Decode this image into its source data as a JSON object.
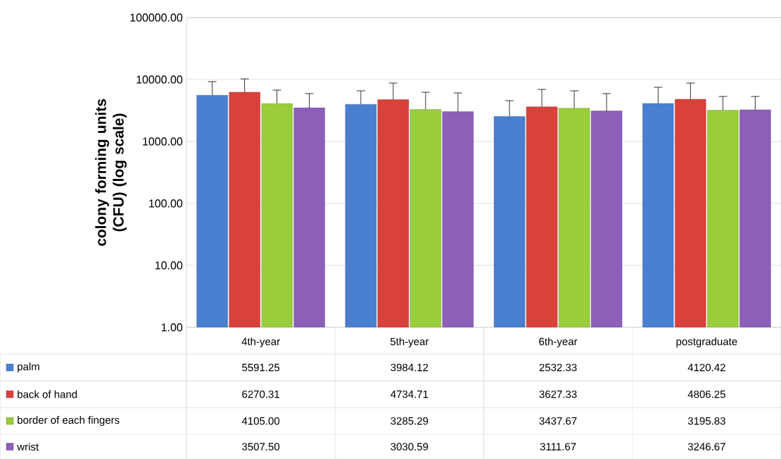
{
  "chart_data": {
    "type": "bar",
    "ylabel": "colony forming units (CFU) (log scale)",
    "log": "y",
    "grid": "y",
    "legend": "bottom left",
    "categories": [
      "4th-year",
      "5th-year",
      "6th-year",
      "postgraduate"
    ],
    "ylim": [
      1,
      100000
    ],
    "yticks": [
      {
        "value": 1,
        "label": "1.00"
      },
      {
        "value": 10,
        "label": "10.00"
      },
      {
        "value": 100,
        "label": "100.00"
      },
      {
        "value": 1000,
        "label": "1000.00"
      },
      {
        "value": 10000,
        "label": "10000.00"
      },
      {
        "value": 100000,
        "label": "100000.00"
      }
    ],
    "series": [
      {
        "name": "palm",
        "color": "#4a7fd0",
        "values": [
          5591.25,
          3984.12,
          2532.33,
          4120.42
        ],
        "value_labels": [
          "5591.25",
          "3984.12",
          "2532.33",
          "4120.42"
        ],
        "errors": [
          [
            5591.25,
            9250
          ],
          [
            3984.12,
            6580
          ],
          [
            2532.33,
            4560
          ],
          [
            4120.42,
            7500
          ]
        ]
      },
      {
        "name": "back of hand",
        "color": "#d9413a",
        "values": [
          6270.31,
          4734.71,
          3627.33,
          4806.25
        ],
        "value_labels": [
          "6270.31",
          "4734.71",
          "3627.33",
          "4806.25"
        ],
        "errors": [
          [
            6270.31,
            10260
          ],
          [
            4734.71,
            8770
          ],
          [
            3627.33,
            6930
          ],
          [
            4806.25,
            8770
          ]
        ]
      },
      {
        "name": "border of each fingers",
        "color": "#9acd3c",
        "values": [
          4105.0,
          3285.29,
          3437.67,
          3195.83
        ],
        "value_labels": [
          "4105.00",
          "3285.29",
          "3437.67",
          "3195.83"
        ],
        "errors": [
          [
            4105.0,
            6760
          ],
          [
            3285.29,
            6240
          ],
          [
            3437.67,
            6580
          ],
          [
            3195.83,
            5330
          ]
        ]
      },
      {
        "name": "wrist",
        "color": "#8c5fb8",
        "values": [
          3507.5,
          3030.59,
          3111.67,
          3246.67
        ],
        "value_labels": [
          "3507.50",
          "3030.59",
          "3111.67",
          "3246.67"
        ],
        "errors": [
          [
            3507.5,
            5930
          ],
          [
            3030.59,
            6080
          ],
          [
            3111.67,
            5930
          ],
          [
            3246.67,
            5330
          ]
        ]
      }
    ]
  }
}
